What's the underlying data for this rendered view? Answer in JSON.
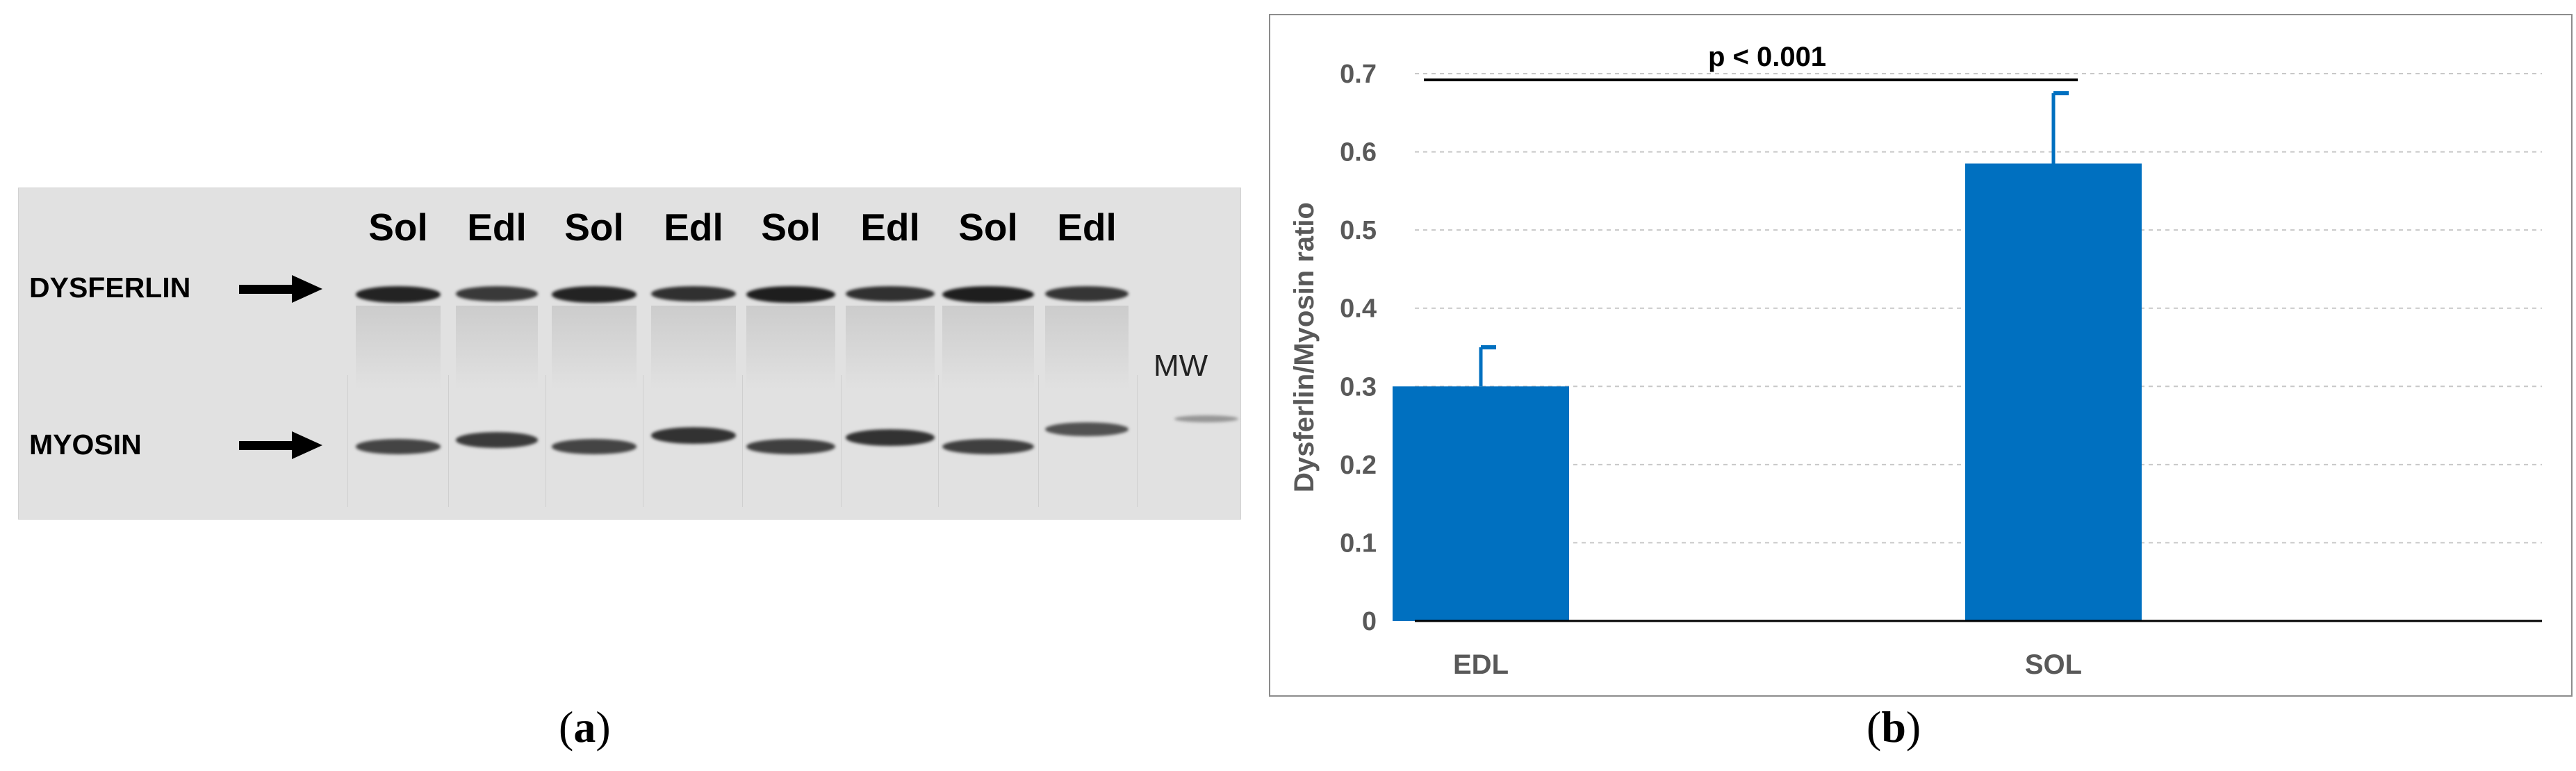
{
  "panel_a": {
    "label_open": "(",
    "label_letter": "a",
    "label_close": ")",
    "lanes": [
      "Sol",
      "Edl",
      "Sol",
      "Edl",
      "Sol",
      "Edl",
      "Sol",
      "Edl"
    ],
    "bands": {
      "dysferlin_label": "DYSFERLIN",
      "myosin_label": "MYOSIN"
    },
    "mw_label": "MW"
  },
  "panel_b": {
    "label_open": "(",
    "label_letter": "b",
    "label_close": ")"
  },
  "chart_data": {
    "type": "bar",
    "categories": [
      "EDL",
      "SOL"
    ],
    "values": [
      0.3,
      0.585
    ],
    "error_upper": [
      0.35,
      0.675
    ],
    "ylabel": "Dysferlin/Myosin ratio",
    "xlabel": "",
    "ylim": [
      0,
      0.7
    ],
    "yticks": [
      "0",
      "0.1",
      "0.2",
      "0.3",
      "0.4",
      "0.5",
      "0.6",
      "0.7"
    ],
    "grid": true,
    "annotation": "p < 0.001",
    "bar_color": "#0070c0"
  }
}
